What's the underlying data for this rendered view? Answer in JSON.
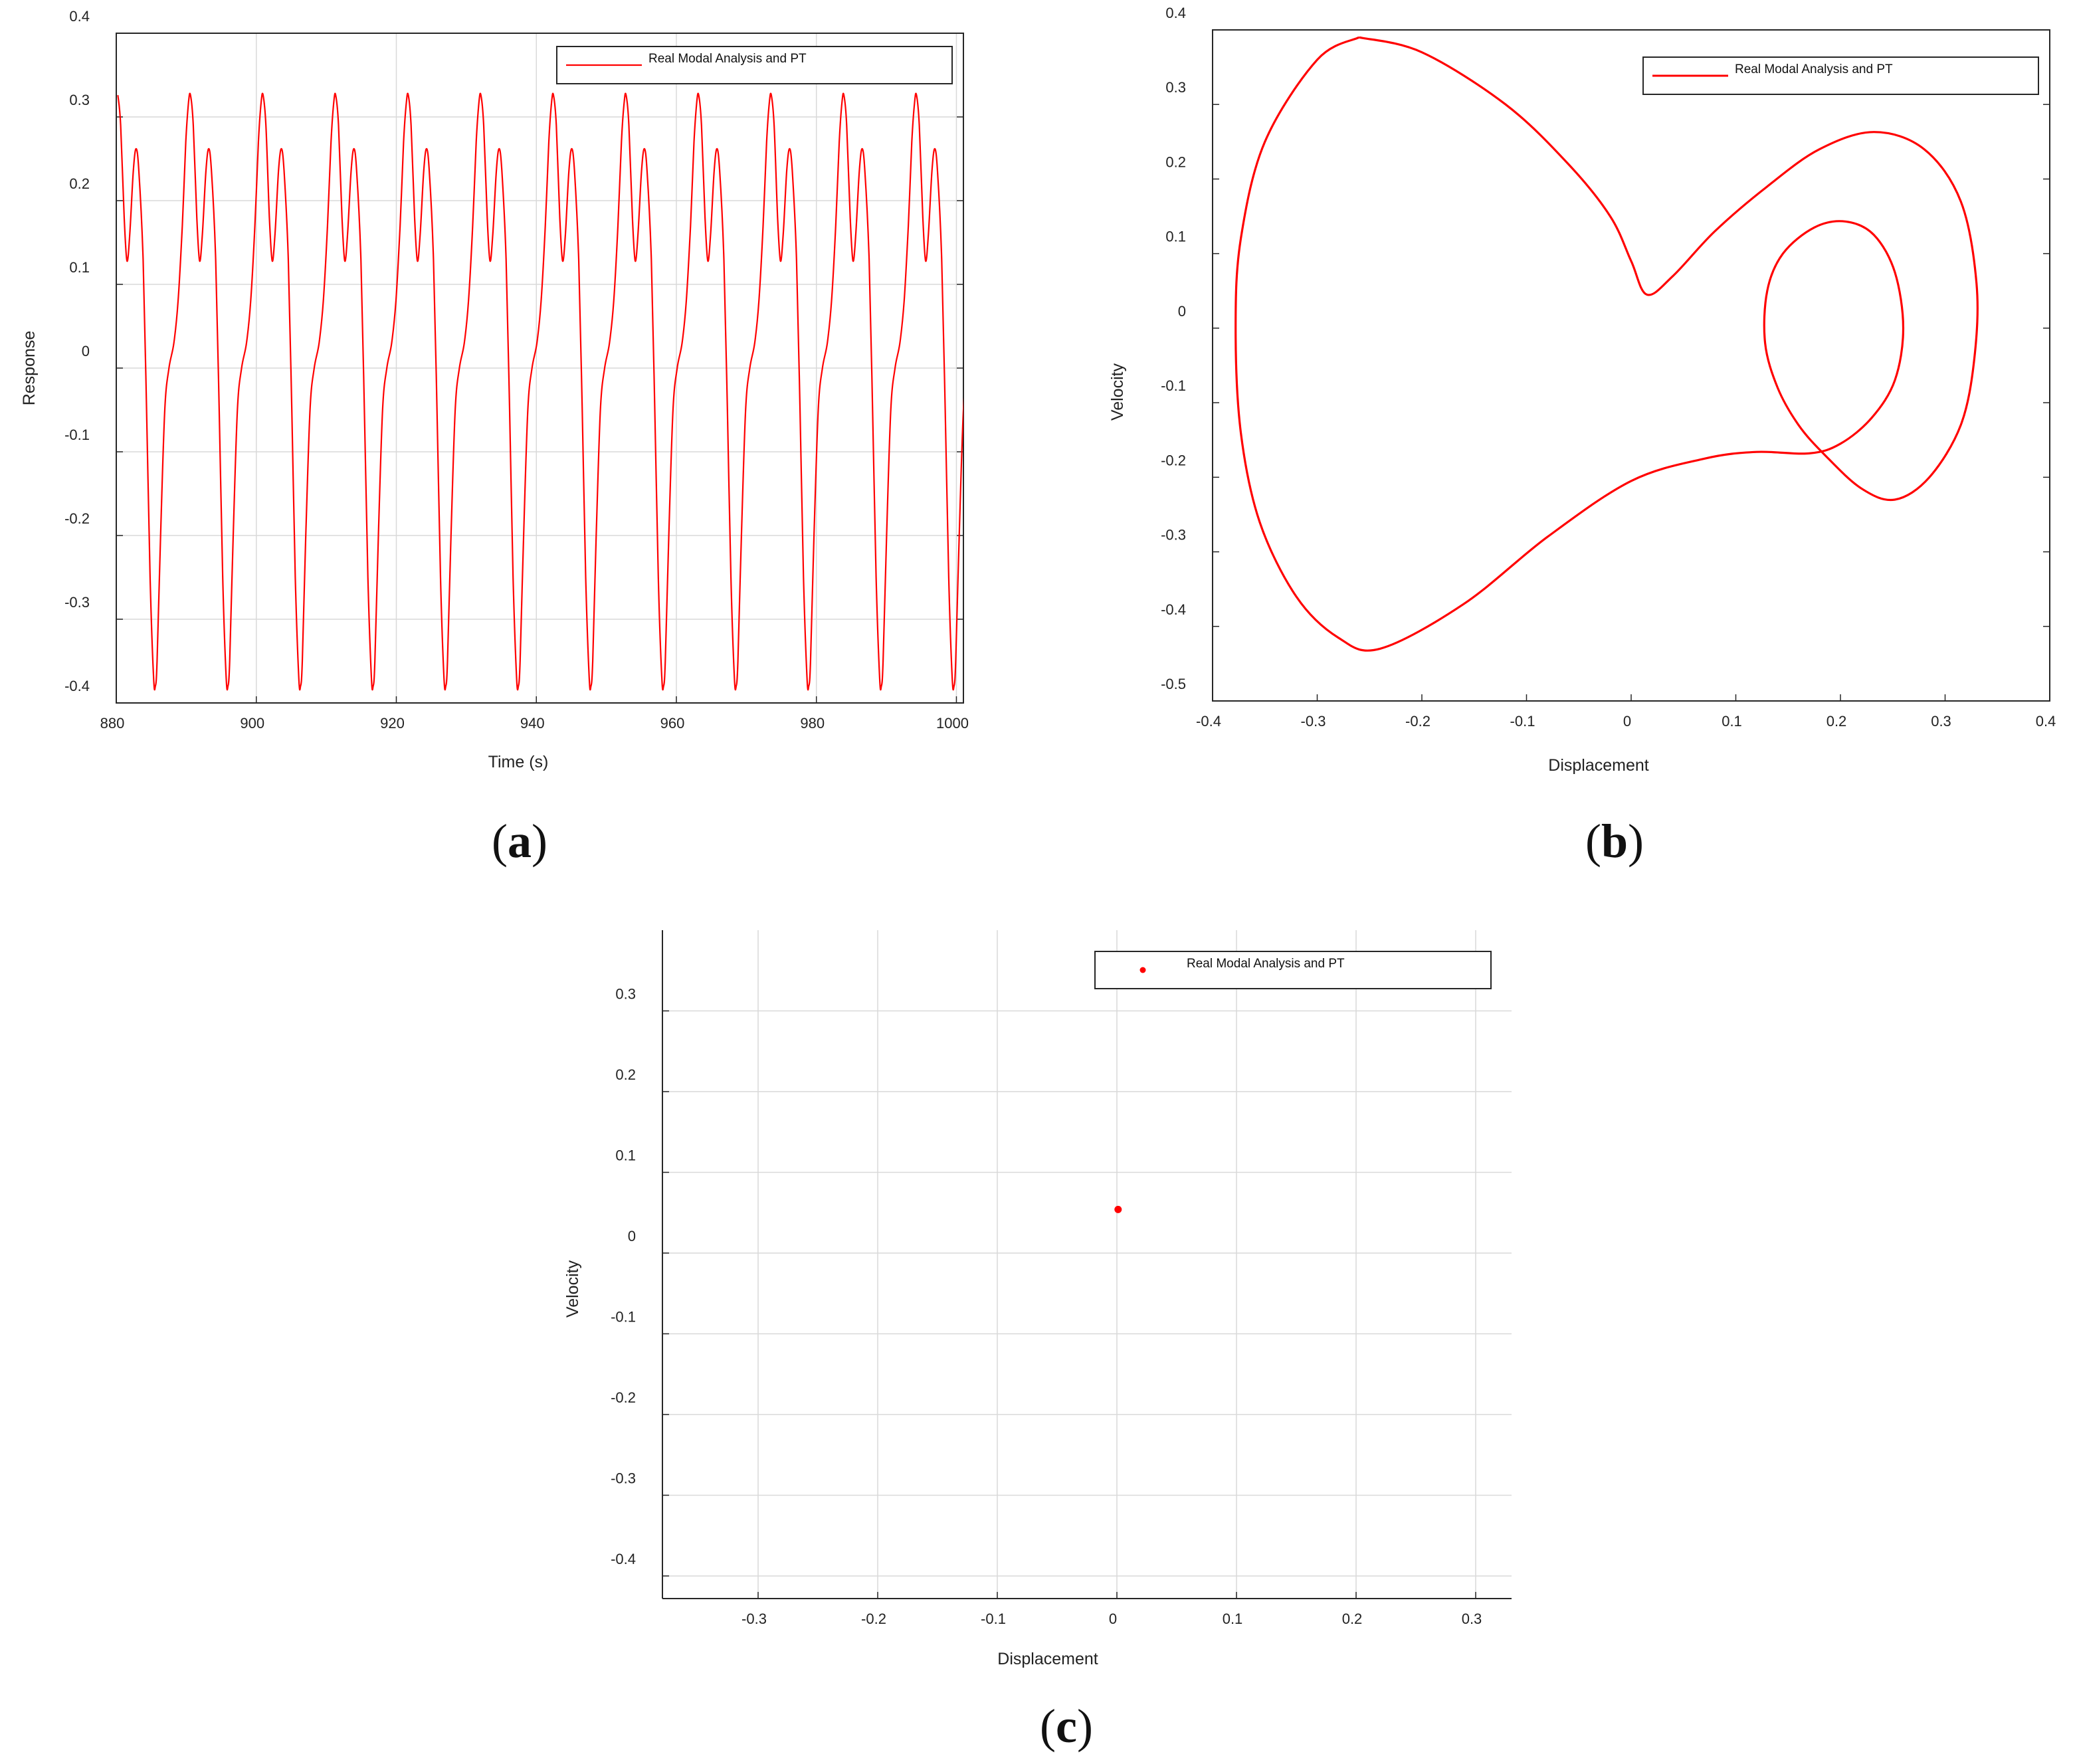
{
  "colors": {
    "series": "#ff0000",
    "axis": "#262626",
    "grid": "#d9d9d9"
  },
  "panel_labels": {
    "a": "a",
    "b": "b",
    "c": "c"
  },
  "chart_data": [
    {
      "id": "a",
      "type": "line",
      "xlabel": "Time (s)",
      "ylabel": "Response",
      "xlim": [
        880,
        1001
      ],
      "ylim": [
        -0.4,
        0.4
      ],
      "xticks": [
        880,
        900,
        920,
        940,
        960,
        980,
        1000
      ],
      "xtick_labels": [
        "880",
        "900",
        "920",
        "940",
        "960",
        "980",
        "1000"
      ],
      "yticks": [
        0.4,
        0.3,
        0.2,
        0.1,
        0,
        -0.1,
        -0.2,
        -0.3,
        -0.4
      ],
      "ytick_labels": [
        "0.4",
        "0.3",
        "0.2",
        "0.1",
        "0",
        "-0.1",
        "-0.2",
        "-0.3",
        "-0.4"
      ],
      "grid": true,
      "legend": {
        "location": "top-right",
        "label": "Real Modal Analysis and PT"
      },
      "series": [
        {
          "name": "Real Modal Analysis and PT",
          "style": "line",
          "period": 10.37,
          "first_peak_time": 890.6,
          "cycle_shape": [
            {
              "dt": 0.0,
              "y": 0.326
            },
            {
              "dt": 0.4,
              "y": 0.29
            },
            {
              "dt": 0.9,
              "y": 0.18
            },
            {
              "dt": 1.3,
              "y": 0.128
            },
            {
              "dt": 1.7,
              "y": 0.16
            },
            {
              "dt": 2.2,
              "y": 0.235
            },
            {
              "dt": 2.6,
              "y": 0.262
            },
            {
              "dt": 3.0,
              "y": 0.235
            },
            {
              "dt": 3.6,
              "y": 0.13
            },
            {
              "dt": 4.1,
              "y": -0.05
            },
            {
              "dt": 4.6,
              "y": -0.25
            },
            {
              "dt": 5.1,
              "y": -0.37
            },
            {
              "dt": 5.35,
              "y": -0.38
            },
            {
              "dt": 5.6,
              "y": -0.35
            },
            {
              "dt": 6.1,
              "y": -0.2
            },
            {
              "dt": 6.7,
              "y": -0.05
            },
            {
              "dt": 7.3,
              "y": 0.0
            },
            {
              "dt": 8.0,
              "y": 0.03
            },
            {
              "dt": 8.6,
              "y": 0.08
            },
            {
              "dt": 9.2,
              "y": 0.17
            },
            {
              "dt": 9.7,
              "y": 0.27
            },
            {
              "dt": 10.1,
              "y": 0.318
            },
            {
              "dt": 10.37,
              "y": 0.326
            }
          ]
        }
      ]
    },
    {
      "id": "b",
      "type": "line",
      "xlabel": "Displacement",
      "ylabel": "Velocity",
      "xlim": [
        -0.4,
        0.4
      ],
      "ylim": [
        -0.5,
        0.4
      ],
      "xticks": [
        -0.4,
        -0.3,
        -0.2,
        -0.1,
        0,
        0.1,
        0.2,
        0.3,
        0.4
      ],
      "xtick_labels": [
        "-0.4",
        "-0.3",
        "-0.2",
        "-0.1",
        "0",
        "0.1",
        "0.2",
        "0.3",
        "0.4"
      ],
      "yticks": [
        0.4,
        0.3,
        0.2,
        0.1,
        0,
        -0.1,
        -0.2,
        -0.3,
        -0.4,
        -0.5
      ],
      "ytick_labels": [
        "0.4",
        "0.3",
        "0.2",
        "0.1",
        "0",
        "-0.1",
        "-0.2",
        "-0.3",
        "-0.4",
        "-0.5"
      ],
      "grid": false,
      "legend": {
        "location": "top-right",
        "label": "Real Modal Analysis and PT"
      },
      "series": [
        {
          "name": "Real Modal Analysis and PT",
          "style": "line",
          "points": [
            [
              -0.26,
              0.39
            ],
            [
              -0.2,
              0.37
            ],
            [
              -0.12,
              0.3
            ],
            [
              -0.06,
              0.22
            ],
            [
              -0.02,
              0.15
            ],
            [
              0.0,
              0.09
            ],
            [
              0.015,
              0.045
            ],
            [
              0.04,
              0.07
            ],
            [
              0.08,
              0.13
            ],
            [
              0.13,
              0.19
            ],
            [
              0.18,
              0.24
            ],
            [
              0.232,
              0.263
            ],
            [
              0.28,
              0.24
            ],
            [
              0.315,
              0.17
            ],
            [
              0.33,
              0.06
            ],
            [
              0.328,
              -0.04
            ],
            [
              0.315,
              -0.13
            ],
            [
              0.285,
              -0.2
            ],
            [
              0.252,
              -0.23
            ],
            [
              0.22,
              -0.215
            ],
            [
              0.185,
              -0.17
            ],
            [
              0.16,
              -0.13
            ],
            [
              0.14,
              -0.08
            ],
            [
              0.128,
              -0.02
            ],
            [
              0.13,
              0.05
            ],
            [
              0.145,
              0.1
            ],
            [
              0.175,
              0.135
            ],
            [
              0.205,
              0.143
            ],
            [
              0.232,
              0.125
            ],
            [
              0.252,
              0.075
            ],
            [
              0.26,
              0.0
            ],
            [
              0.252,
              -0.07
            ],
            [
              0.23,
              -0.12
            ],
            [
              0.2,
              -0.155
            ],
            [
              0.17,
              -0.168
            ],
            [
              0.12,
              -0.166
            ],
            [
              0.07,
              -0.175
            ],
            [
              0.0,
              -0.205
            ],
            [
              -0.08,
              -0.28
            ],
            [
              -0.16,
              -0.37
            ],
            [
              -0.24,
              -0.43
            ],
            [
              -0.28,
              -0.415
            ],
            [
              -0.32,
              -0.36
            ],
            [
              -0.355,
              -0.26
            ],
            [
              -0.373,
              -0.14
            ],
            [
              -0.378,
              0.0
            ],
            [
              -0.373,
              0.12
            ],
            [
              -0.35,
              0.25
            ],
            [
              -0.3,
              0.36
            ],
            [
              -0.26,
              0.39
            ]
          ]
        }
      ]
    },
    {
      "id": "c",
      "type": "scatter",
      "xlabel": "Displacement",
      "ylabel": "Velocity",
      "xlim": [
        -0.38,
        0.33
      ],
      "ylim": [
        -0.428,
        0.4
      ],
      "xticks": [
        -0.3,
        -0.2,
        -0.1,
        0,
        0.1,
        0.2,
        0.3
      ],
      "xtick_labels": [
        "-0.3",
        "-0.2",
        "-0.1",
        "0",
        "0.1",
        "0.2",
        "0.3"
      ],
      "yticks": [
        0.3,
        0.2,
        0.1,
        0,
        -0.1,
        -0.2,
        -0.3,
        -0.4
      ],
      "ytick_labels": [
        "0.3",
        "0.2",
        "0.1",
        "0",
        "-0.1",
        "-0.2",
        "-0.3",
        "-0.4"
      ],
      "grid": true,
      "legend": {
        "location": "top-right",
        "label": "Real Modal Analysis and PT"
      },
      "series": [
        {
          "name": "Real Modal Analysis and PT",
          "style": "marker",
          "points": [
            [
              0.001,
              0.054
            ]
          ]
        }
      ]
    }
  ]
}
